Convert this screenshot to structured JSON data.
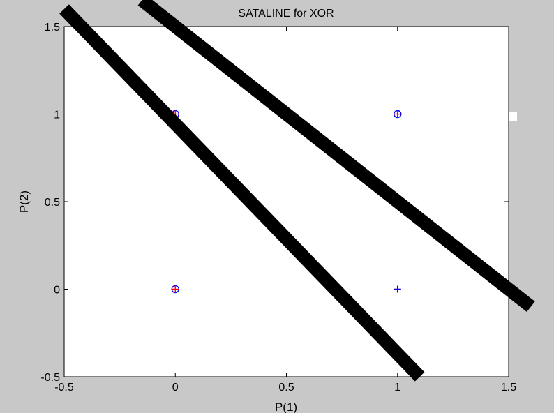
{
  "chart_data": {
    "type": "scatter",
    "title": "SATALINE for XOR",
    "xlabel": "P(1)",
    "ylabel": "P(2)",
    "xlim": [
      -0.5,
      1.5
    ],
    "ylim": [
      -0.5,
      1.5
    ],
    "xticks": [
      -0.5,
      0,
      0.5,
      1,
      1.5
    ],
    "yticks": [
      -0.5,
      0,
      0.5,
      1,
      1.5
    ],
    "xtick_labels": [
      "-0.5",
      "0",
      "0.5",
      "1",
      "1.5"
    ],
    "ytick_labels": [
      "-0.5",
      "0",
      "0.5",
      "1",
      "1.5"
    ],
    "grid": false,
    "series": [
      {
        "marker": "o",
        "color": "#0000ff",
        "points": [
          [
            0,
            0
          ],
          [
            0,
            1
          ],
          [
            1,
            1
          ]
        ]
      },
      {
        "marker": "+",
        "color": "#ff0000",
        "points": [
          [
            0,
            0
          ],
          [
            1,
            0
          ],
          [
            0,
            1
          ],
          [
            1,
            1
          ]
        ]
      },
      {
        "marker": "+",
        "color": "#0000ff",
        "points": [
          [
            1,
            0
          ]
        ]
      }
    ],
    "lines": [
      {
        "color": "#000000",
        "points": [
          [
            -0.5,
            1.6
          ],
          [
            1.1,
            -0.5
          ]
        ]
      },
      {
        "color": "#000000",
        "points": [
          [
            -0.15,
            1.65
          ],
          [
            1.6,
            -0.1
          ]
        ]
      }
    ]
  },
  "colors": {
    "figure_background": "#c8c8c8",
    "axes_background": "#ffffff"
  }
}
